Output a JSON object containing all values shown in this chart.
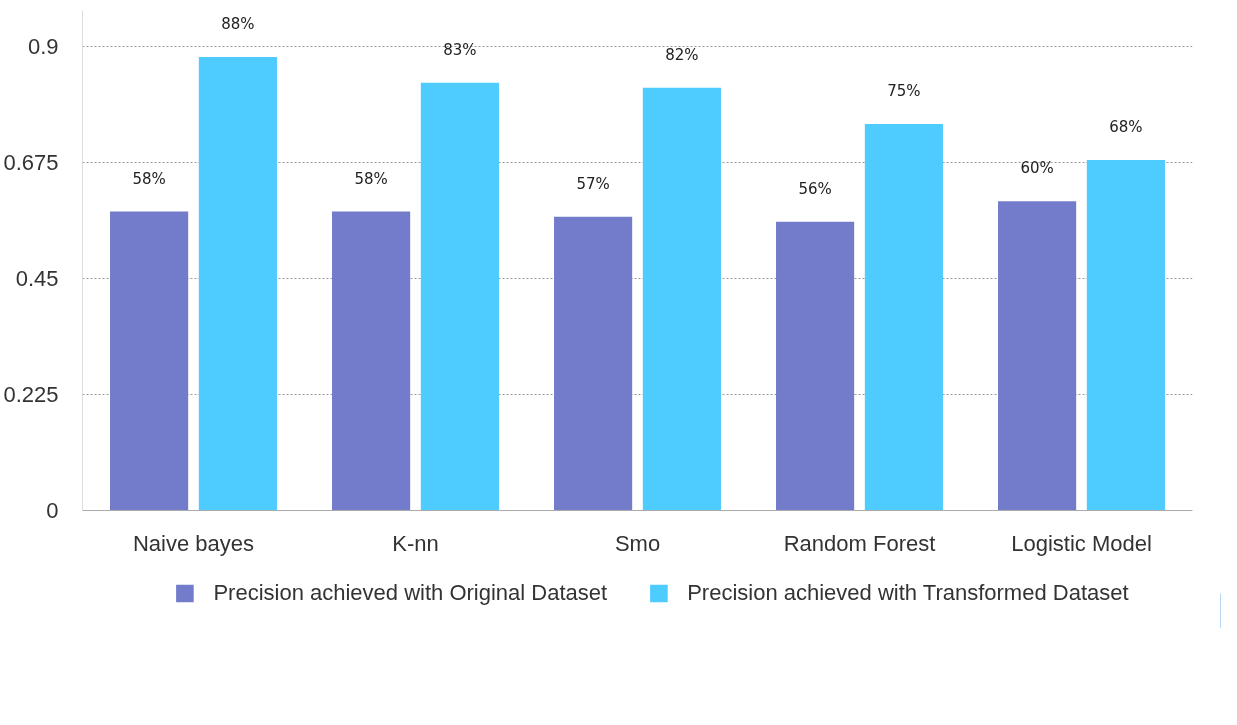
{
  "chart_data": {
    "type": "bar",
    "categories": [
      "Naive bayes",
      "K-nn",
      "Smo",
      "Random Forest",
      "Logistic Model"
    ],
    "series": [
      {
        "name": "Precision achieved with Original Dataset",
        "color": "#737bcb",
        "values": [
          0.58,
          0.58,
          0.57,
          0.56,
          0.6
        ],
        "value_labels": [
          "58%",
          "58%",
          "57%",
          "56%",
          "60%"
        ]
      },
      {
        "name": "Precision achieved with Transformed Dataset",
        "color": "#4ecbff",
        "values": [
          0.88,
          0.83,
          0.82,
          0.75,
          0.68
        ],
        "value_labels": [
          "88%",
          "83%",
          "82%",
          "75%",
          "68%"
        ]
      }
    ],
    "ylim": [
      0,
      0.97
    ],
    "yticks": [
      0,
      0.225,
      0.45,
      0.675,
      0.9
    ],
    "grid": "y",
    "legend": "bottom"
  }
}
